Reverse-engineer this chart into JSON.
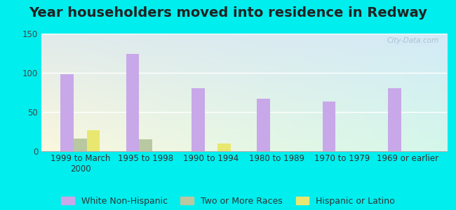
{
  "title": "Year householders moved into residence in Redway",
  "categories": [
    "1999 to March\n2000",
    "1995 to 1998",
    "1990 to 1994",
    "1980 to 1989",
    "1970 to 1979",
    "1969 or earlier"
  ],
  "series": {
    "White Non-Hispanic": [
      98,
      124,
      80,
      67,
      63,
      80
    ],
    "Two or More Races": [
      16,
      15,
      0,
      0,
      0,
      0
    ],
    "Hispanic or Latino": [
      27,
      0,
      10,
      0,
      0,
      0
    ]
  },
  "colors": {
    "White Non-Hispanic": "#c8a8e8",
    "Two or More Races": "#b8c8a0",
    "Hispanic or Latino": "#e8e870"
  },
  "legend_labels": [
    "White Non-Hispanic",
    "Two or More Races",
    "Hispanic or Latino"
  ],
  "ylim": [
    0,
    150
  ],
  "yticks": [
    0,
    50,
    100,
    150
  ],
  "bar_width": 0.2,
  "background_color": "#00eeee",
  "watermark": "City-Data.com",
  "title_fontsize": 14,
  "tick_fontsize": 8.5,
  "legend_fontsize": 9
}
